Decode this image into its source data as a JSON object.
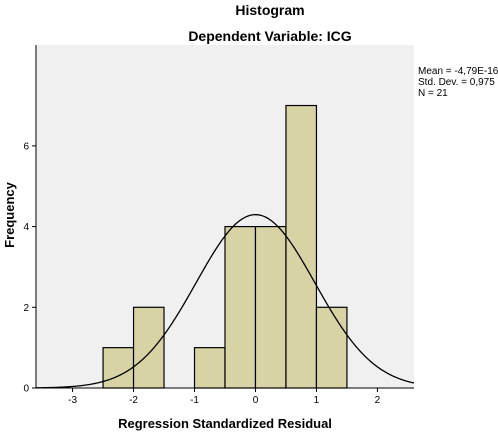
{
  "chart_data": {
    "type": "histogram",
    "title": "Histogram",
    "subtitle": "Dependent Variable: ICG",
    "xlabel": "Regression Standardized Residual",
    "ylabel": "Frequency",
    "xlim": [
      -3.6,
      2.6
    ],
    "ylim": [
      0,
      8.5
    ],
    "x_ticks": [
      -3,
      -2,
      -1,
      0,
      1,
      2
    ],
    "y_ticks": [
      0,
      2,
      4,
      6
    ],
    "bins": [
      {
        "start": -2.5,
        "end": -2.0,
        "count": 1
      },
      {
        "start": -2.0,
        "end": -1.5,
        "count": 2
      },
      {
        "start": -1.5,
        "end": -1.0,
        "count": 0
      },
      {
        "start": -1.0,
        "end": -0.5,
        "count": 1
      },
      {
        "start": -0.5,
        "end": 0.0,
        "count": 4
      },
      {
        "start": 0.0,
        "end": 0.5,
        "count": 4
      },
      {
        "start": 0.5,
        "end": 1.0,
        "count": 7
      },
      {
        "start": 1.0,
        "end": 1.5,
        "count": 2
      }
    ],
    "normal_curve": {
      "mean": 0,
      "sd": 0.975,
      "n": 21,
      "bin_width": 0.5
    },
    "stats": [
      "Mean = -4,79E-16",
      "Std. Dev. = 0,975",
      "N = 21"
    ],
    "colors": {
      "bar_fill": "#d8d3a5",
      "bar_stroke": "#000000",
      "plot_bg": "#f0f0f0",
      "curve": "#000000"
    },
    "grid": false
  }
}
